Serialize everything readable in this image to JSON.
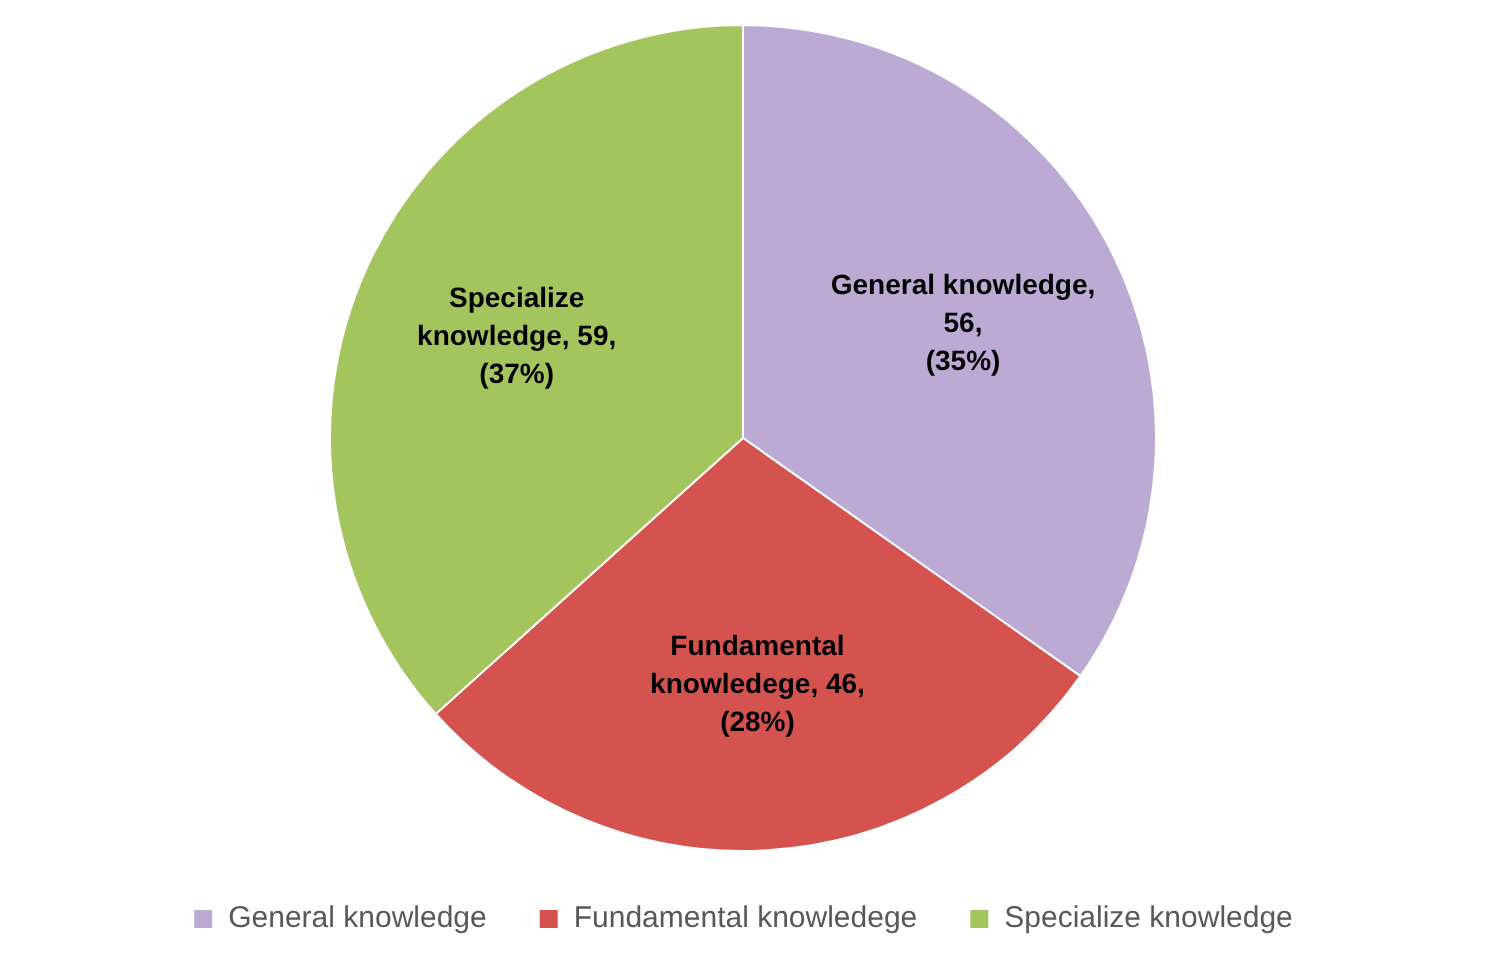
{
  "chart_data": {
    "type": "pie",
    "categories": [
      "General knowledge",
      "Fundamental knowledege",
      "Specialize knowledge"
    ],
    "values": [
      56,
      46,
      59
    ],
    "colors": [
      "#bcaad4",
      "#d4534f",
      "#a4c45e"
    ],
    "value_labels": [
      "General knowledge,\n56,\n(35%)",
      "Fundamental\nknowledege, 46,\n(28%)",
      "Specialize\nknowledge, 59,\n(37%)"
    ],
    "legend": "bottom"
  }
}
